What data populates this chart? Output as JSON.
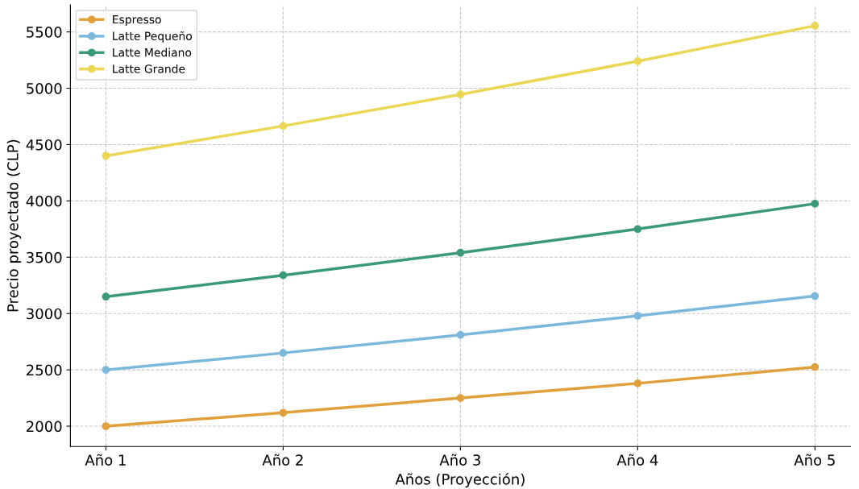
{
  "chart_data": {
    "type": "line",
    "xlabel": "Años (Proyección)",
    "ylabel": "Precio proyectado (CLP)",
    "categories": [
      "Año 1",
      "Año 2",
      "Año 3",
      "Año 4",
      "Año 5"
    ],
    "series": [
      {
        "name": "Espresso",
        "color": "#e0a03c",
        "values": [
          2000,
          2120,
          2250,
          2380,
          2525
        ]
      },
      {
        "name": "Latte Pequeño",
        "color": "#7ab8dc",
        "values": [
          2500,
          2650,
          2810,
          2980,
          3155
        ]
      },
      {
        "name": "Latte Mediano",
        "color": "#3a9a78",
        "values": [
          3150,
          3340,
          3540,
          3750,
          3975
        ]
      },
      {
        "name": "Latte Grande",
        "color": "#ecd755",
        "values": [
          4400,
          4665,
          4945,
          5240,
          5555
        ]
      }
    ],
    "ylim": [
      1820,
      5740
    ],
    "yticks": [
      2000,
      2500,
      3000,
      3500,
      4000,
      4500,
      5000,
      5500
    ],
    "grid": true,
    "legend": "top left",
    "marker": "circle",
    "line_style": "solid"
  }
}
